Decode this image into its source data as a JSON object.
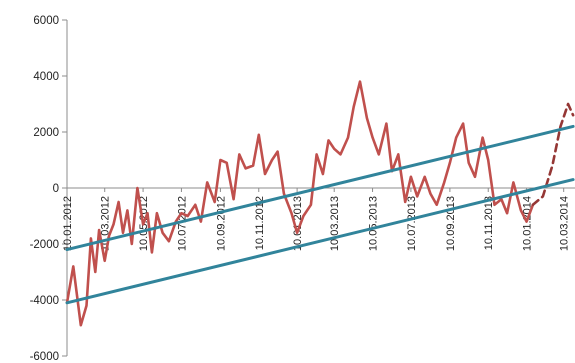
{
  "chart_data": {
    "type": "line",
    "title": "",
    "xlabel": "",
    "ylabel": "",
    "ylim": [
      -6000,
      6000
    ],
    "y_ticks": [
      -6000,
      -4000,
      -2000,
      0,
      2000,
      4000,
      6000
    ],
    "y_tick_labels": [
      "-6000",
      "-4000",
      "-2000",
      "0",
      "2000",
      "4000",
      "6000"
    ],
    "x_tick_labels": [
      "10.01.2012",
      "10.03.2012",
      "10.05.2012",
      "10.07.2012",
      "10.09.2012",
      "10.11.2012",
      "10.01.2013",
      "10.03.2013",
      "10.05.2013",
      "10.07.2013",
      "10.09.2013",
      "10.11.2013",
      "10.01.2014",
      "10.03.2014"
    ],
    "x_tick_dates": [
      "2012-01-10",
      "2012-03-10",
      "2012-05-10",
      "2012-07-10",
      "2012-09-10",
      "2012-11-10",
      "2013-01-10",
      "2013-03-10",
      "2013-05-10",
      "2013-07-10",
      "2013-09-10",
      "2013-11-10",
      "2014-01-10",
      "2014-03-10"
    ],
    "grid": false,
    "legend": "none",
    "series": [
      {
        "role": "price",
        "style": "solid",
        "color": "#c0504d",
        "x": [
          "2012-01-10",
          "2012-01-20",
          "2012-02-01",
          "2012-02-10",
          "2012-02-17",
          "2012-02-24",
          "2012-03-01",
          "2012-03-10",
          "2012-03-17",
          "2012-03-24",
          "2012-04-01",
          "2012-04-08",
          "2012-04-15",
          "2012-04-22",
          "2012-05-01",
          "2012-05-10",
          "2012-05-17",
          "2012-05-24",
          "2012-06-01",
          "2012-06-10",
          "2012-06-20",
          "2012-07-01",
          "2012-07-10",
          "2012-07-20",
          "2012-08-01",
          "2012-08-10",
          "2012-08-20",
          "2012-09-01",
          "2012-09-10",
          "2012-09-20",
          "2012-10-01",
          "2012-10-10",
          "2012-10-20",
          "2012-11-01",
          "2012-11-10",
          "2012-11-20",
          "2012-12-01",
          "2012-12-10",
          "2012-12-20",
          "2013-01-01",
          "2013-01-10",
          "2013-01-20",
          "2013-02-01",
          "2013-02-10",
          "2013-02-20",
          "2013-03-01",
          "2013-03-10",
          "2013-03-20",
          "2013-04-01",
          "2013-04-10",
          "2013-04-20",
          "2013-05-01",
          "2013-05-10",
          "2013-05-20",
          "2013-06-01",
          "2013-06-10",
          "2013-06-20",
          "2013-07-01",
          "2013-07-10",
          "2013-07-20",
          "2013-08-01",
          "2013-08-10",
          "2013-08-20",
          "2013-09-01",
          "2013-09-10",
          "2013-09-20",
          "2013-10-01",
          "2013-10-10",
          "2013-10-20",
          "2013-11-01",
          "2013-11-10",
          "2013-11-20",
          "2013-12-01",
          "2013-12-10",
          "2013-12-20",
          "2014-01-01",
          "2014-01-10",
          "2014-01-20"
        ],
        "values": [
          -4100,
          -2800,
          -4900,
          -4200,
          -1800,
          -3000,
          -1500,
          -2600,
          -1700,
          -1300,
          -500,
          -1600,
          -800,
          -2000,
          0,
          -1300,
          -900,
          -2300,
          -900,
          -1600,
          -1900,
          -1200,
          -900,
          -1000,
          -600,
          -1200,
          200,
          -500,
          1000,
          900,
          -400,
          1200,
          700,
          800,
          1900,
          500,
          1000,
          1300,
          -200,
          -900,
          -1600,
          -1000,
          -600,
          1200,
          500,
          1700,
          1400,
          1200,
          1800,
          2900,
          3800,
          2500,
          1800,
          1200,
          2300,
          600,
          1200,
          -500,
          400,
          -300,
          400,
          -200,
          -600,
          200,
          900,
          1800,
          2300,
          900,
          400,
          1800,
          1000,
          -600,
          -400,
          -900,
          200,
          -800,
          -1200,
          -600
        ]
      },
      {
        "role": "forecast",
        "style": "dashed",
        "color": "#953735",
        "x": [
          "2014-01-20",
          "2014-02-05",
          "2014-02-20",
          "2014-03-05",
          "2014-03-17",
          "2014-03-25"
        ],
        "values": [
          -600,
          -300,
          800,
          2200,
          3000,
          2600
        ]
      },
      {
        "role": "channel-upper",
        "style": "solid",
        "color": "#31849b",
        "x": [
          "2012-01-10",
          "2014-03-25"
        ],
        "values": [
          -2200,
          2200
        ]
      },
      {
        "role": "channel-lower",
        "style": "solid",
        "color": "#31849b",
        "x": [
          "2012-01-10",
          "2014-03-25"
        ],
        "values": [
          -4100,
          300
        ]
      }
    ]
  }
}
